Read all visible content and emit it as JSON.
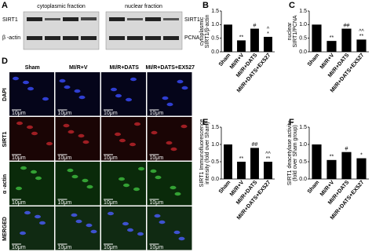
{
  "blots": {
    "panel": "A",
    "left_title": "cytoplasmic fraction",
    "right_title": "nuclear fraction",
    "left_rows": [
      "SIRT1",
      "β -actin"
    ],
    "right_rows": [
      "SIRT1",
      "PCNA"
    ]
  },
  "micrographs": {
    "panel": "D",
    "columns": [
      "Sham",
      "MI/R+V",
      "MI/R+DATS",
      "MI/R+DATS+EX527"
    ],
    "rows": [
      "DAPI",
      "SIRT1",
      "α -actin",
      "MERGED"
    ],
    "scale_bar": "10μm"
  },
  "chart_data": [
    {
      "type": "bar",
      "panel": "B",
      "ylabel": [
        "cytoplasmic",
        "SIRT1/β-actin"
      ],
      "categories": [
        "Sham",
        "MI/R+V",
        "MI/R+DATS",
        "MI/R+DATS+EX527"
      ],
      "values": [
        1.0,
        0.42,
        0.85,
        0.55
      ],
      "markers": [
        [],
        [
          "**"
        ],
        [
          "#"
        ],
        [
          "^",
          "*"
        ]
      ],
      "color": "#000000",
      "ylim": [
        0,
        1.5
      ],
      "yticks": [
        {
          "value": 0,
          "label": "0.0"
        },
        0.5,
        {
          "value": 1,
          "label": "1.0"
        },
        1.5
      ]
    },
    {
      "type": "bar",
      "panel": "C",
      "ylabel": [
        "nuclear",
        "SIRT1/PCNA"
      ],
      "categories": [
        "Sham",
        "MI/R+V",
        "MI/R+DATS",
        "MI/R+DATS+EX527"
      ],
      "values": [
        1.0,
        0.4,
        0.85,
        0.45
      ],
      "markers": [
        [],
        [
          "**"
        ],
        [
          "##"
        ],
        [
          "^^",
          "**"
        ]
      ],
      "color": "#000000",
      "ylim": [
        0,
        1.5
      ],
      "yticks": [
        {
          "value": 0,
          "label": "0.0"
        },
        0.5,
        {
          "value": 1,
          "label": "1.0"
        },
        1.5
      ]
    },
    {
      "type": "bar",
      "panel": "E",
      "ylabel": [
        "SIRT1 Immunofluorescence",
        "intensity (fold over Sham)"
      ],
      "categories": [
        "Sham",
        "MI/R+V",
        "MI/R+DATS",
        "MI/R+DATS+EX527"
      ],
      "values": [
        1.0,
        0.5,
        0.9,
        0.5
      ],
      "markers": [
        [],
        [
          "**"
        ],
        [
          "##"
        ],
        [
          "^^",
          "**"
        ]
      ],
      "color": "#000000",
      "ylim": [
        0,
        1.5
      ],
      "yticks": [
        {
          "value": 0,
          "label": "0.0"
        },
        0.5,
        {
          "value": 1,
          "label": "1.0"
        },
        1.5
      ]
    },
    {
      "type": "bar",
      "panel": "F",
      "ylabel": [
        "SIRT1 deacetylase activity",
        "(fold over Sham group)"
      ],
      "categories": [
        "Sham",
        "MI/R+V",
        "MI/R+DATS",
        "MI/R+DATS+EX527"
      ],
      "values": [
        1.0,
        0.55,
        0.78,
        0.6
      ],
      "markers": [
        [],
        [
          "**"
        ],
        [
          "#"
        ],
        [
          "*"
        ]
      ],
      "color": "#000000",
      "ylim": [
        0,
        1.5
      ],
      "yticks": [
        {
          "value": 0,
          "label": "0.0"
        },
        0.5,
        {
          "value": 1,
          "label": "1.0"
        },
        1.5
      ]
    }
  ]
}
